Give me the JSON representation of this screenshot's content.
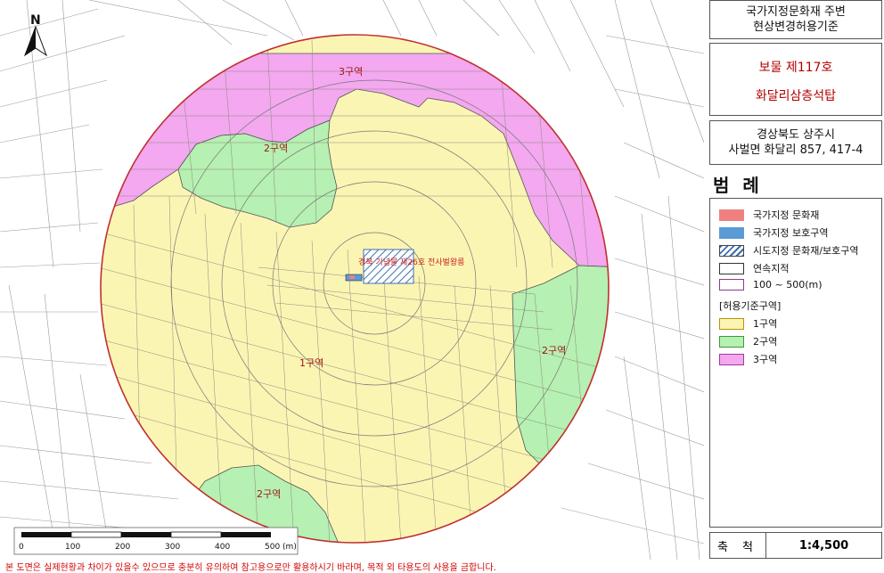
{
  "header": {
    "title_line1": "국가지정문화재 주변",
    "title_line2": "현상변경허용기준"
  },
  "heritage": {
    "designation": "보물 제117호",
    "name": "화달리삼층석탑"
  },
  "location": {
    "line1": "경상북도 상주시",
    "line2": "사벌면 화달리 857, 417-4"
  },
  "legend": {
    "title": "범 례",
    "items": [
      {
        "label": "국가지정 문화재",
        "color": "#f08080"
      },
      {
        "label": "국가지정 보호구역",
        "color": "#5b9bd5"
      },
      {
        "label": "시도지정 문화재/보호구역",
        "color": "hatch-blue"
      },
      {
        "label": "연속지적",
        "color": "#ffffff"
      },
      {
        "label": "100 ~ 500(m)",
        "color": "#ffffff"
      }
    ],
    "zone_heading": "[허용기준구역]",
    "zones": [
      {
        "label": "1구역",
        "color": "#fbf5b4"
      },
      {
        "label": "2구역",
        "color": "#b6f0b2"
      },
      {
        "label": "3구역",
        "color": "#f3a8f0"
      }
    ]
  },
  "scale": {
    "label": "축 척",
    "value": "1:4,500"
  },
  "map": {
    "north_label": "N",
    "zone_labels": [
      "1구역",
      "2구역",
      "2구역",
      "2구역",
      "3구역"
    ],
    "center_label": "경북 기념물 제26호 전사벌왕릉",
    "scale_bar_ticks": [
      "0",
      "100",
      "200",
      "300",
      "400",
      "500 (m)"
    ]
  },
  "footer": {
    "note": "본 도면은 실제현황과 차이가 있을수 있으므로 충분히 유의하여 참고용으로만 활용하시기 바라며, 목적 외 타용도의 사용을 금합니다."
  }
}
